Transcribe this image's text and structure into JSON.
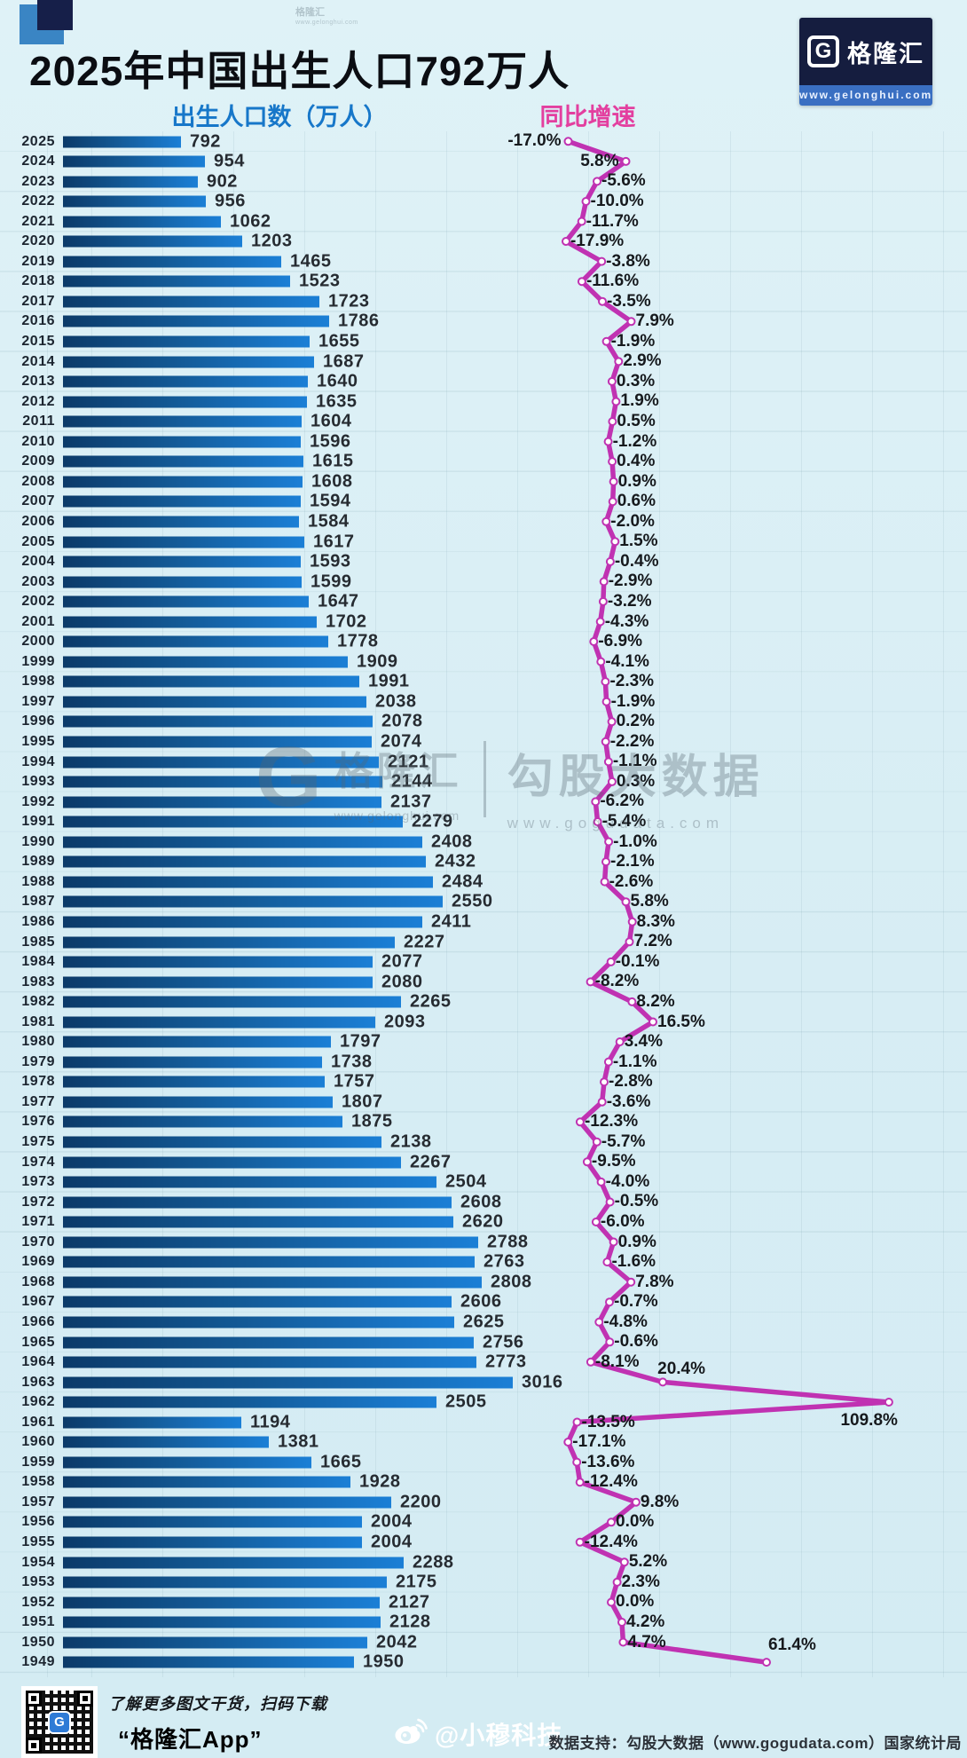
{
  "page": {
    "title": "2025年中国出生人口792万人",
    "bar_header": "出生人口数（万人）",
    "line_header": "同比增速"
  },
  "logo": {
    "g": "G",
    "name": "格隆汇",
    "url": "www.gelonghui.com"
  },
  "watermark": {
    "g": "G",
    "brand": "格隆汇",
    "brand_url": "www.gelonghui.com",
    "data_brand": "勾股大数据",
    "data_url": "www.gogudata.com"
  },
  "footer": {
    "promo_line1": "了解更多图文干货，扫码下载",
    "promo_line2": "“格隆汇App”",
    "weibo_handle": "@小穆科技",
    "source": "数据支持：勾股大数据（www.gogudata.com）国家统计局"
  },
  "colors": {
    "background": "#d9eef4",
    "bar_dark": "#0b3a69",
    "bar_light": "#1b7fd6",
    "line_pink": "#c032b2",
    "header_blue": "#1777c9",
    "header_pink": "#e33f9f",
    "logo_navy": "#151d3f",
    "logo_blue": "#3a6fc2"
  },
  "chart_data": [
    {
      "type": "bar",
      "orientation": "horizontal",
      "title": "出生人口数（万人）",
      "categories": [
        "2025",
        "2024",
        "2023",
        "2022",
        "2021",
        "2020",
        "2019",
        "2018",
        "2017",
        "2016",
        "2015",
        "2014",
        "2013",
        "2012",
        "2011",
        "2010",
        "2009",
        "2008",
        "2007",
        "2006",
        "2005",
        "2004",
        "2003",
        "2002",
        "2001",
        "2000",
        "1999",
        "1998",
        "1997",
        "1996",
        "1995",
        "1994",
        "1993",
        "1992",
        "1991",
        "1990",
        "1989",
        "1988",
        "1987",
        "1986",
        "1985",
        "1984",
        "1983",
        "1982",
        "1981",
        "1980",
        "1979",
        "1978",
        "1977",
        "1976",
        "1975",
        "1974",
        "1973",
        "1972",
        "1971",
        "1970",
        "1969",
        "1968",
        "1967",
        "1966",
        "1965",
        "1964",
        "1963",
        "1962",
        "1961",
        "1960",
        "1959",
        "1958",
        "1957",
        "1956",
        "1955",
        "1954",
        "1953",
        "1952",
        "1951",
        "1950",
        "1949"
      ],
      "values": [
        792,
        954,
        902,
        956,
        1062,
        1203,
        1465,
        1523,
        1723,
        1786,
        1655,
        1687,
        1640,
        1635,
        1604,
        1596,
        1615,
        1608,
        1594,
        1584,
        1617,
        1593,
        1599,
        1647,
        1702,
        1778,
        1909,
        1991,
        2038,
        2078,
        2074,
        2121,
        2144,
        2137,
        2279,
        2408,
        2432,
        2484,
        2550,
        2411,
        2227,
        2077,
        2080,
        2265,
        2093,
        1797,
        1738,
        1757,
        1807,
        1875,
        2138,
        2267,
        2504,
        2608,
        2620,
        2788,
        2763,
        2808,
        2606,
        2625,
        2756,
        2773,
        3016,
        2505,
        1194,
        1381,
        1665,
        1928,
        2200,
        2004,
        2004,
        2288,
        2175,
        2127,
        2128,
        2042,
        1950
      ],
      "xlim": [
        0,
        3016
      ],
      "grid": true
    },
    {
      "type": "line",
      "orientation": "horizontal",
      "title": "同比增速",
      "unit": "%",
      "categories": [
        "2025",
        "2024",
        "2023",
        "2022",
        "2021",
        "2020",
        "2019",
        "2018",
        "2017",
        "2016",
        "2015",
        "2014",
        "2013",
        "2012",
        "2011",
        "2010",
        "2009",
        "2008",
        "2007",
        "2006",
        "2005",
        "2004",
        "2003",
        "2002",
        "2001",
        "2000",
        "1999",
        "1998",
        "1997",
        "1996",
        "1995",
        "1994",
        "1993",
        "1992",
        "1991",
        "1990",
        "1989",
        "1988",
        "1987",
        "1986",
        "1985",
        "1984",
        "1983",
        "1982",
        "1981",
        "1980",
        "1979",
        "1978",
        "1977",
        "1976",
        "1975",
        "1974",
        "1973",
        "1972",
        "1971",
        "1970",
        "1969",
        "1968",
        "1967",
        "1966",
        "1965",
        "1964",
        "1963",
        "1962",
        "1961",
        "1960",
        "1959",
        "1958",
        "1957",
        "1956",
        "1955",
        "1954",
        "1953",
        "1952",
        "1951",
        "1950",
        "1949"
      ],
      "values": [
        -17.0,
        5.8,
        -5.6,
        -10.0,
        -11.7,
        -17.9,
        -3.8,
        -11.6,
        -3.5,
        7.9,
        -1.9,
        2.9,
        0.3,
        1.9,
        0.5,
        -1.2,
        0.4,
        0.9,
        0.6,
        -2.0,
        1.5,
        -0.4,
        -2.9,
        -3.2,
        -4.3,
        -6.9,
        -4.1,
        -2.3,
        -1.9,
        0.2,
        -2.2,
        -1.1,
        0.3,
        -6.2,
        -5.4,
        -1.0,
        -2.1,
        -2.6,
        5.8,
        8.3,
        7.2,
        -0.1,
        -8.2,
        8.2,
        16.5,
        3.4,
        -1.1,
        -2.8,
        -3.6,
        -12.3,
        -5.7,
        -9.5,
        -4.0,
        -0.5,
        -6.0,
        0.9,
        -1.6,
        7.8,
        -0.7,
        -4.8,
        -0.6,
        -8.1,
        20.4,
        109.8,
        -13.5,
        -17.1,
        -13.6,
        -12.4,
        9.8,
        0.0,
        -12.4,
        5.2,
        2.3,
        0.0,
        4.2,
        4.7,
        61.4
      ],
      "xlim": [
        -20,
        115
      ],
      "grid": true
    }
  ]
}
